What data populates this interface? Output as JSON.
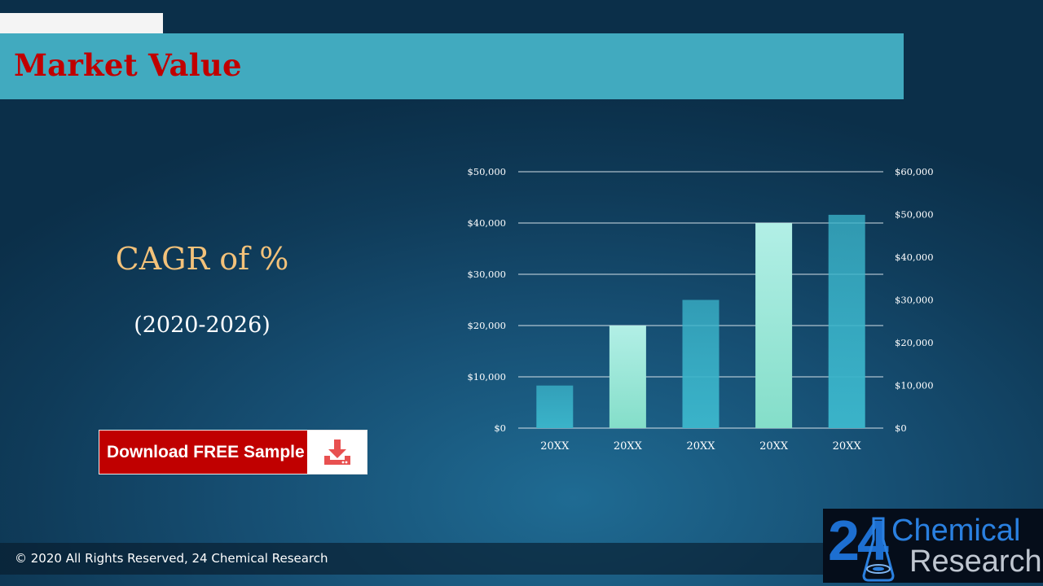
{
  "slide": {
    "title": "Market Value",
    "cagr_text": "CAGR of %",
    "period_text": "(2020-2026)",
    "download_label": "Download FREE Sample",
    "footer_text": "© 2020 All Rights Reserved, 24 Chemical Research"
  },
  "logo": {
    "number": "24",
    "word1": "Chemical",
    "word2": "Research"
  },
  "icons": {
    "download": "download-tray-icon",
    "flask": "flask-icon"
  },
  "colors": {
    "title": "#c00000",
    "title_band": "#41aabf",
    "cagr": "#f3c27a",
    "button": "#c00000",
    "bar_teal": "#3ab3c9",
    "bar_mint": "#9fe8d8"
  },
  "chart_data": {
    "type": "bar",
    "categories": [
      "20XX",
      "20XX",
      "20XX",
      "20XX",
      "20XX"
    ],
    "values": [
      8300,
      20000,
      25000,
      40000,
      41600
    ],
    "bar_styles": [
      "teal",
      "mint",
      "teal",
      "mint",
      "teal"
    ],
    "ylim": [
      0,
      50000
    ],
    "y_ticks": [
      "$0",
      "$10,000",
      "$20,000",
      "$30,000",
      "$40,000",
      "$50,000"
    ],
    "y2lim": [
      0,
      60000
    ],
    "y2_ticks": [
      "$0",
      "$10,000",
      "$20,000",
      "$30,000",
      "$40,000",
      "$50,000",
      "$60,000"
    ],
    "grid": true,
    "legend": "none"
  }
}
